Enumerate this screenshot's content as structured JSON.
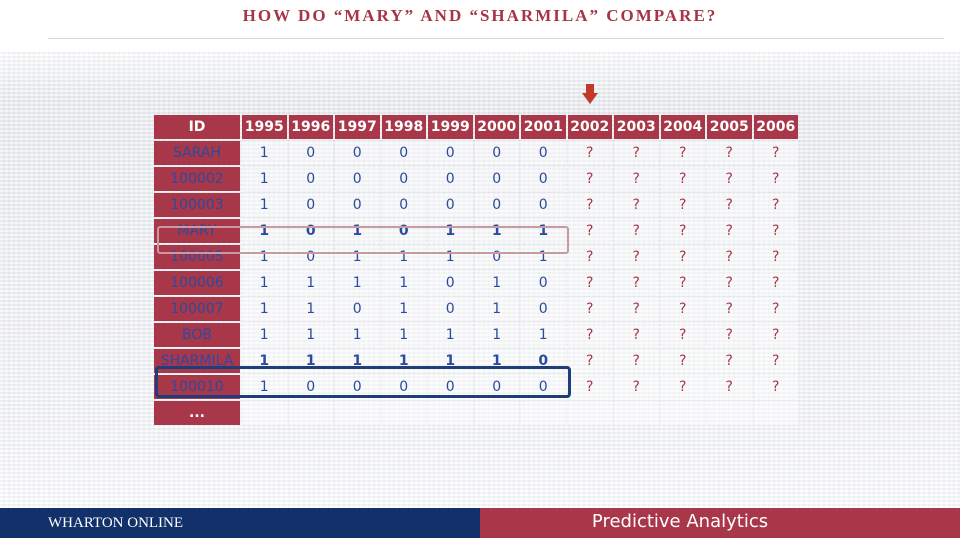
{
  "title": "HOW DO “MARY” AND “SHARMILA” COMPARE?",
  "table": {
    "headers": [
      "ID",
      "1995",
      "1996",
      "1997",
      "1998",
      "1999",
      "2000",
      "2001",
      "2002",
      "2003",
      "2004",
      "2005",
      "2006"
    ],
    "rows": [
      {
        "id": "SARAH",
        "values": [
          "1",
          "0",
          "0",
          "0",
          "0",
          "0",
          "0"
        ],
        "unknown": [
          "?",
          "?",
          "?",
          "?",
          "?"
        ]
      },
      {
        "id": "100002",
        "values": [
          "1",
          "0",
          "0",
          "0",
          "0",
          "0",
          "0"
        ],
        "unknown": [
          "?",
          "?",
          "?",
          "?",
          "?"
        ]
      },
      {
        "id": "100003",
        "values": [
          "1",
          "0",
          "0",
          "0",
          "0",
          "0",
          "0"
        ],
        "unknown": [
          "?",
          "?",
          "?",
          "?",
          "?"
        ]
      },
      {
        "id": "MARY",
        "values": [
          "1",
          "0",
          "1",
          "0",
          "1",
          "1",
          "1"
        ],
        "unknown": [
          "?",
          "?",
          "?",
          "?",
          "?"
        ]
      },
      {
        "id": "100005",
        "values": [
          "1",
          "0",
          "1",
          "1",
          "1",
          "0",
          "1"
        ],
        "unknown": [
          "?",
          "?",
          "?",
          "?",
          "?"
        ]
      },
      {
        "id": "100006",
        "values": [
          "1",
          "1",
          "1",
          "1",
          "0",
          "1",
          "0"
        ],
        "unknown": [
          "?",
          "?",
          "?",
          "?",
          "?"
        ]
      },
      {
        "id": "100007",
        "values": [
          "1",
          "1",
          "0",
          "1",
          "0",
          "1",
          "0"
        ],
        "unknown": [
          "?",
          "?",
          "?",
          "?",
          "?"
        ]
      },
      {
        "id": "BOB",
        "values": [
          "1",
          "1",
          "1",
          "1",
          "1",
          "1",
          "1"
        ],
        "unknown": [
          "?",
          "?",
          "?",
          "?",
          "?"
        ]
      },
      {
        "id": "SHARMILA",
        "values": [
          "1",
          "1",
          "1",
          "1",
          "1",
          "1",
          "0"
        ],
        "unknown": [
          "?",
          "?",
          "?",
          "?",
          "?"
        ]
      },
      {
        "id": "100010",
        "values": [
          "1",
          "0",
          "0",
          "0",
          "0",
          "0",
          "0"
        ],
        "unknown": [
          "?",
          "?",
          "?",
          "?",
          "?"
        ]
      }
    ],
    "ellipsis": "..."
  },
  "footer": {
    "brand": "WHARTON ONLINE",
    "course": "Predictive Analytics"
  },
  "colors": {
    "header_bg": "#a8374a",
    "value_text": "#2c4a9e",
    "footer_left": "#12306a",
    "footer_right": "#a8374a"
  }
}
